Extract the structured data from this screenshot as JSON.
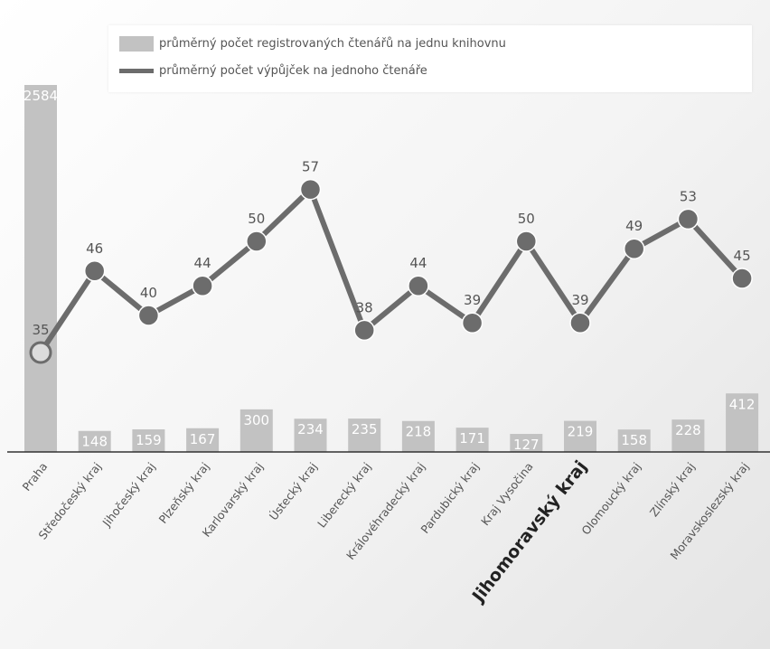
{
  "legend": {
    "bar_label": "průměrný počet registrovaných čtenářů na jednu knihovnu",
    "line_label": "průměrný počet výpůjček na jednoho čtenáře"
  },
  "colors": {
    "bar": "#c2c2c2",
    "line": "#6c6c6c",
    "axis": "#333333",
    "highlight_text": "#222222"
  },
  "chart_data": {
    "type": "bar",
    "categories": [
      "Praha",
      "Středočeský kraj",
      "Jihočeský kraj",
      "Plzeňský kraj",
      "Karlovarský kraj",
      "Ústecký kraj",
      "Liberecký kraj",
      "Královéhradecký kraj",
      "Pardubický kraj",
      "Kraj Vysočina",
      "Jihomoravský kraj",
      "Olomoucký kraj",
      "Zlínský kraj",
      "Moravskoslezský kraj"
    ],
    "highlight_category": "Jihomoravský kraj",
    "series": [
      {
        "name": "průměrný počet registrovaných čtenářů na jednu knihovnu",
        "type": "bar",
        "values": [
          2584,
          148,
          159,
          167,
          300,
          234,
          235,
          218,
          171,
          127,
          219,
          158,
          228,
          412
        ]
      },
      {
        "name": "průměrný počet výpůjček na jednoho čtenáře",
        "type": "line",
        "values": [
          35,
          46,
          40,
          44,
          50,
          57,
          38,
          44,
          39,
          50,
          39,
          49,
          53,
          45
        ]
      }
    ],
    "legend_position": "top",
    "grid": false
  }
}
